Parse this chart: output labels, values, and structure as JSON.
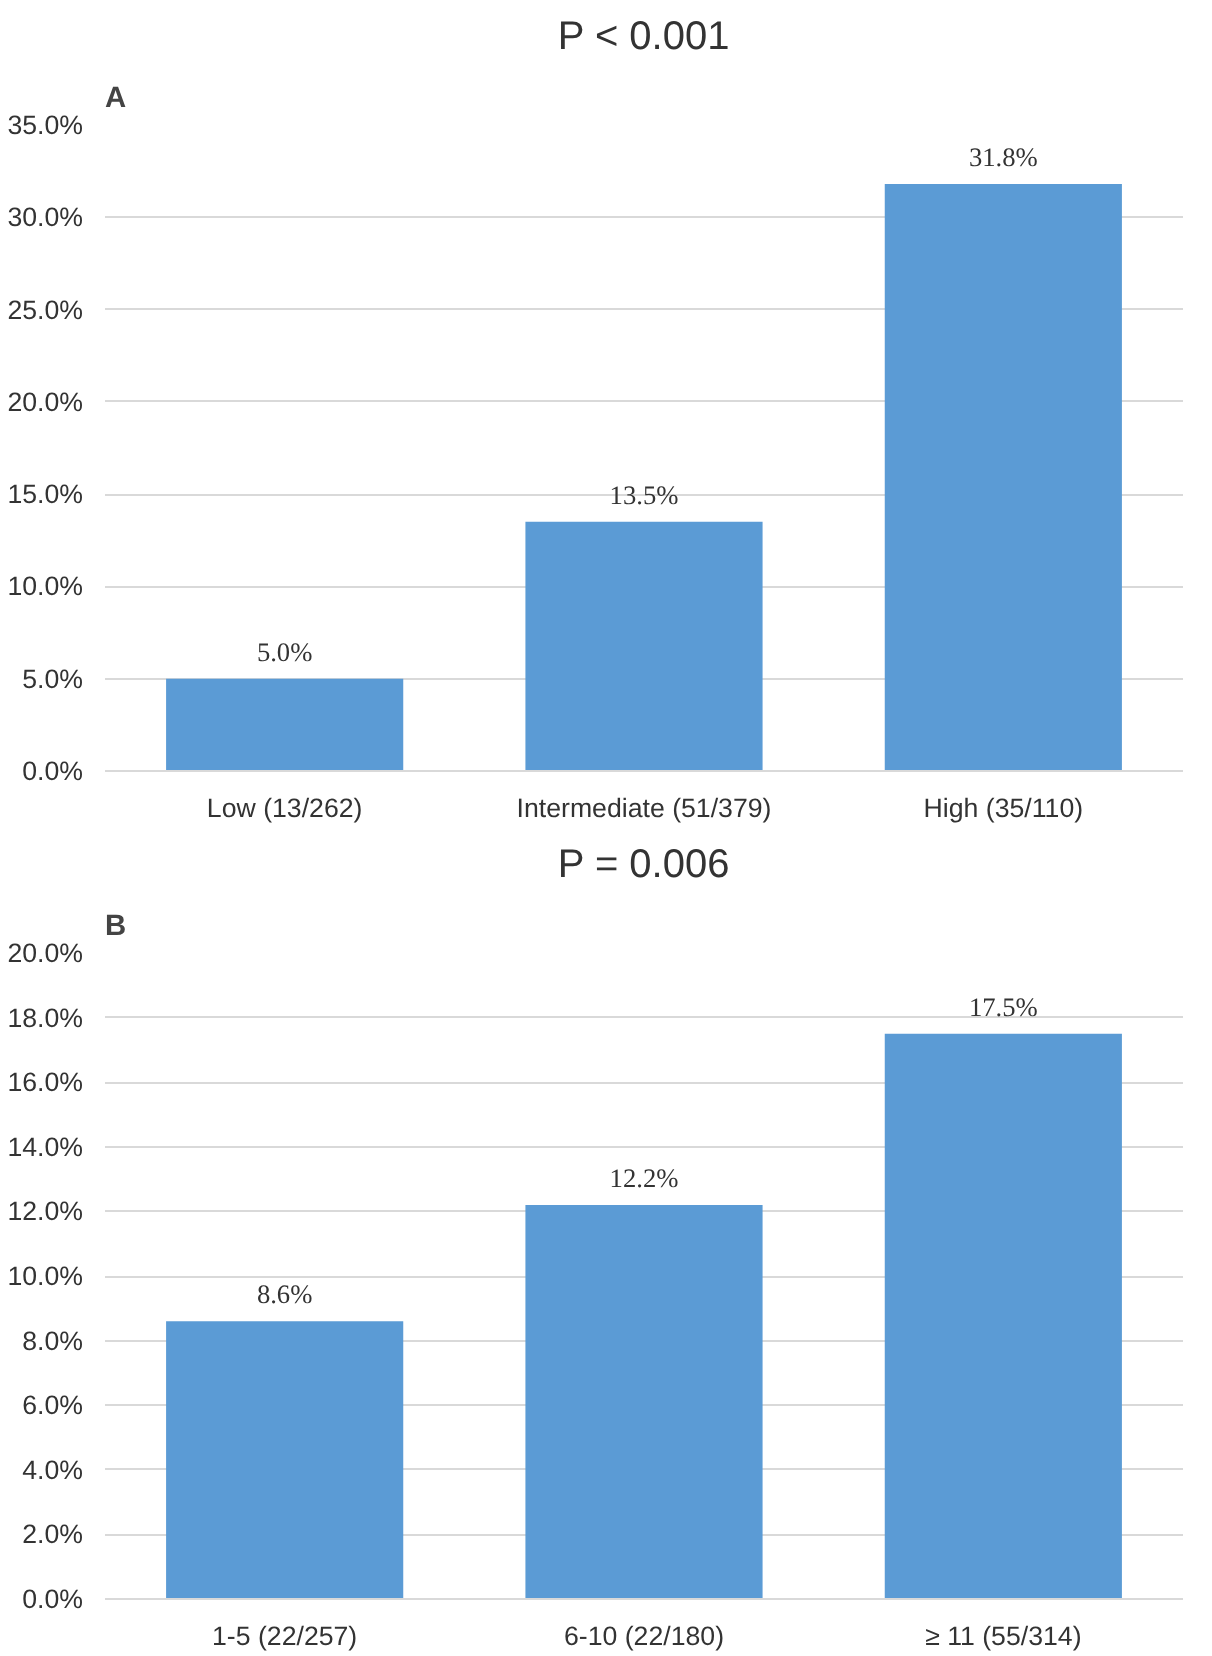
{
  "chart_data": [
    {
      "type": "bar",
      "title": "P < 0.001",
      "annotations": [
        "A"
      ],
      "categories": [
        "Low (13/262)",
        "Intermediate (51/379)",
        "High (35/110)"
      ],
      "values": [
        5.0,
        13.5,
        31.8
      ],
      "value_labels": [
        "5.0%",
        "13.5%",
        "31.8%"
      ],
      "color": "#5b9bd5",
      "ylim": [
        0,
        35
      ],
      "yticks": [
        {
          "value": 0,
          "label": "0.0%"
        },
        {
          "value": 5,
          "label": "5.0%"
        },
        {
          "value": 10,
          "label": "10.0%"
        },
        {
          "value": 15,
          "label": "15.0%"
        },
        {
          "value": 20,
          "label": "20.0%"
        },
        {
          "value": 25,
          "label": "25.0%"
        },
        {
          "value": 30,
          "label": "30.0%"
        },
        {
          "value": 35,
          "label": "35.0%"
        }
      ],
      "grid": "y"
    },
    {
      "type": "bar",
      "title": "P = 0.006",
      "annotations": [
        "B"
      ],
      "categories": [
        "1-5 (22/257)",
        "6-10 (22/180)",
        "≥ 11 (55/314)"
      ],
      "values": [
        8.6,
        12.2,
        17.5
      ],
      "value_labels": [
        "8.6%",
        "12.2%",
        "17.5%"
      ],
      "color": "#5b9bd5",
      "ylim": [
        0,
        20
      ],
      "yticks": [
        {
          "value": 0,
          "label": "0.0%"
        },
        {
          "value": 2,
          "label": "2.0%"
        },
        {
          "value": 4,
          "label": "4.0%"
        },
        {
          "value": 6,
          "label": "6.0%"
        },
        {
          "value": 8,
          "label": "8.0%"
        },
        {
          "value": 10,
          "label": "10.0%"
        },
        {
          "value": 12,
          "label": "12.0%"
        },
        {
          "value": 14,
          "label": "14.0%"
        },
        {
          "value": 16,
          "label": "16.0%"
        },
        {
          "value": 18,
          "label": "18.0%"
        },
        {
          "value": 20,
          "label": "20.0%"
        }
      ],
      "grid": "y"
    }
  ]
}
